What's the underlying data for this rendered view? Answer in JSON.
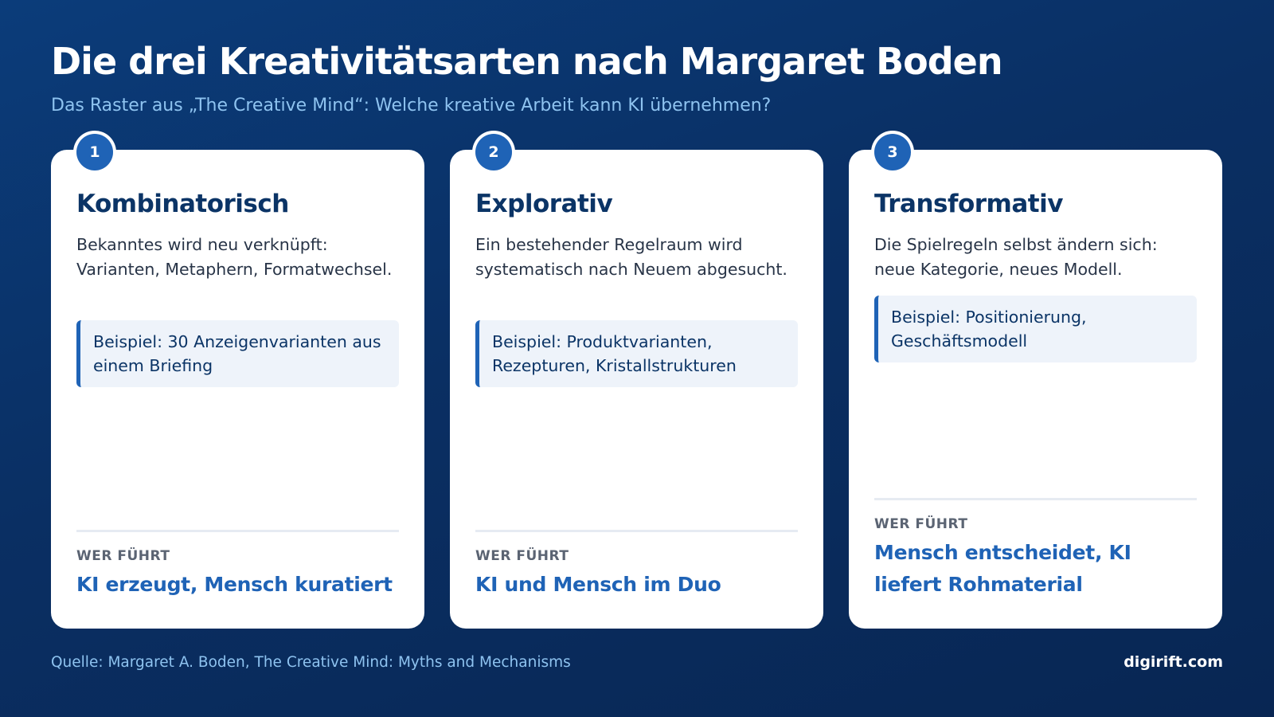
{
  "header": {
    "title": "Die drei Kreativitätsarten nach Margaret Boden",
    "subtitle": "Das Raster aus „The Creative Mind“: Welche kreative Arbeit kann KI übernehmen?"
  },
  "cards": [
    {
      "number": "1",
      "title": "Kombinatorisch",
      "description": "Bekanntes wird neu verknüpft: Varianten, Metaphern, Formatwechsel.",
      "example": "Beispiel: 30 Anzeigenvarianten aus einem Briefing",
      "lead_label": "WER FÜHRT",
      "lead_value": "KI erzeugt, Mensch kuratiert"
    },
    {
      "number": "2",
      "title": "Explorativ",
      "description": "Ein bestehender Regelraum wird systematisch nach Neuem abgesucht.",
      "example": "Beispiel: Produktvarianten, Rezepturen, Kristallstrukturen",
      "lead_label": "WER FÜHRT",
      "lead_value": "KI und Mensch im Duo"
    },
    {
      "number": "3",
      "title": "Transformativ",
      "description": "Die Spielregeln selbst ändern sich: neue Kategorie, neues Modell.",
      "example": "Beispiel: Positionierung, Geschäftsmodell",
      "lead_label": "WER FÜHRT",
      "lead_value": "Mensch entscheidet, KI liefert Rohmaterial"
    }
  ],
  "footer": {
    "source": "Quelle: Margaret A. Boden, The Creative Mind: Myths and Mechanisms",
    "brand": "digirift.com"
  },
  "colors": {
    "background": "#0a2f63",
    "accent": "#1f63b6",
    "card": "#ffffff",
    "heading": "#0b3466"
  }
}
